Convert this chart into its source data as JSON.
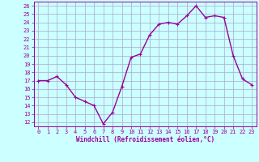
{
  "x": [
    0,
    1,
    2,
    3,
    4,
    5,
    6,
    7,
    8,
    9,
    10,
    11,
    12,
    13,
    14,
    15,
    16,
    17,
    18,
    19,
    20,
    21,
    22,
    23
  ],
  "y": [
    17.0,
    17.0,
    17.5,
    16.5,
    15.0,
    14.5,
    14.0,
    11.8,
    13.2,
    16.3,
    19.8,
    20.2,
    22.5,
    23.8,
    24.0,
    23.8,
    24.8,
    26.0,
    24.6,
    24.8,
    24.6,
    20.0,
    17.2,
    16.5
  ],
  "line_color": "#990099",
  "marker": "+",
  "marker_size": 3,
  "bg_color": "#ccffff",
  "grid_color": "#aaaacc",
  "xlabel": "Windchill (Refroidissement éolien,°C)",
  "ylabel": "",
  "xlim": [
    -0.5,
    23.5
  ],
  "ylim": [
    11.5,
    26.5
  ],
  "yticks": [
    12,
    13,
    14,
    15,
    16,
    17,
    18,
    19,
    20,
    21,
    22,
    23,
    24,
    25,
    26
  ],
  "xticks": [
    0,
    1,
    2,
    3,
    4,
    5,
    6,
    7,
    8,
    9,
    10,
    11,
    12,
    13,
    14,
    15,
    16,
    17,
    18,
    19,
    20,
    21,
    22,
    23
  ],
  "tick_color": "#990099",
  "label_color": "#990099",
  "line_width": 1.0,
  "tick_fontsize": 5,
  "xlabel_fontsize": 5.5
}
